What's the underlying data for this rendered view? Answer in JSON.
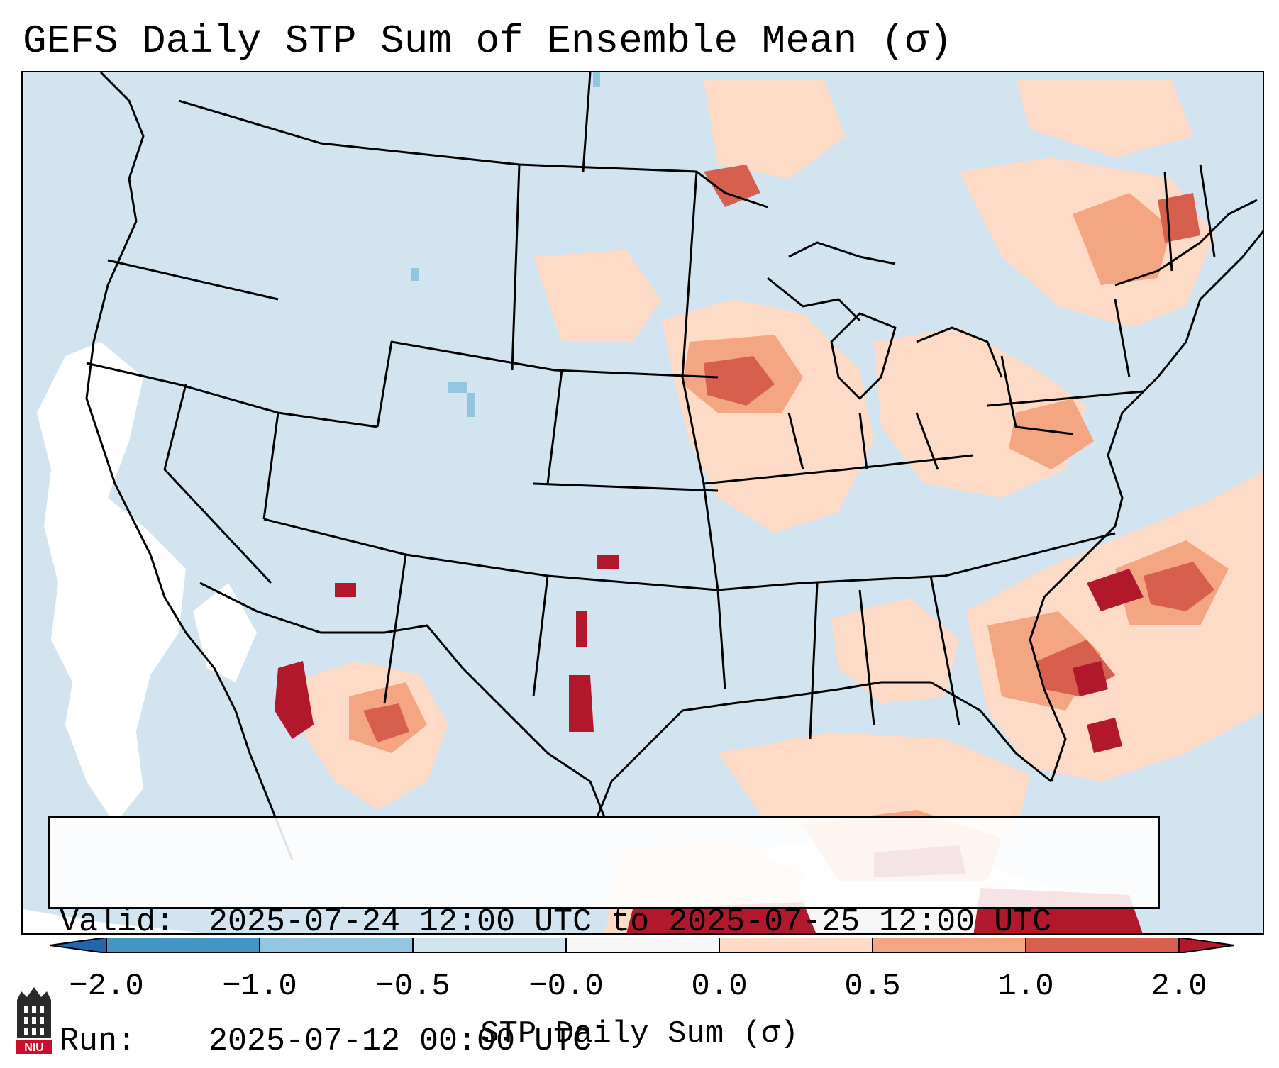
{
  "title": "GEFS Daily STP Sum of Ensemble Mean (σ)",
  "valid": {
    "valid_label": "Valid:",
    "valid_value": "2025-07-24 12:00 UTC to 2025-07-25 12:00 UTC",
    "run_label": "Run:",
    "run_value": "2025-07-12 00:00 UTC"
  },
  "colorbar": {
    "label": "STP Daily Sum (σ)",
    "ticks": [
      "−2.0",
      "−1.0",
      "−0.5",
      "−0.0",
      "0.0",
      "0.5",
      "1.0",
      "2.0"
    ],
    "colors": [
      "#4393c3",
      "#92c5de",
      "#d1e5f0",
      "#f7f7f7",
      "#fddbc7",
      "#f4a582",
      "#d6604d"
    ],
    "under_color": "#2166ac",
    "over_color": "#b2182b"
  },
  "map": {
    "background_color": "#d1e4f0",
    "line_color": "#000000"
  },
  "logo": {
    "text": "NIU"
  }
}
